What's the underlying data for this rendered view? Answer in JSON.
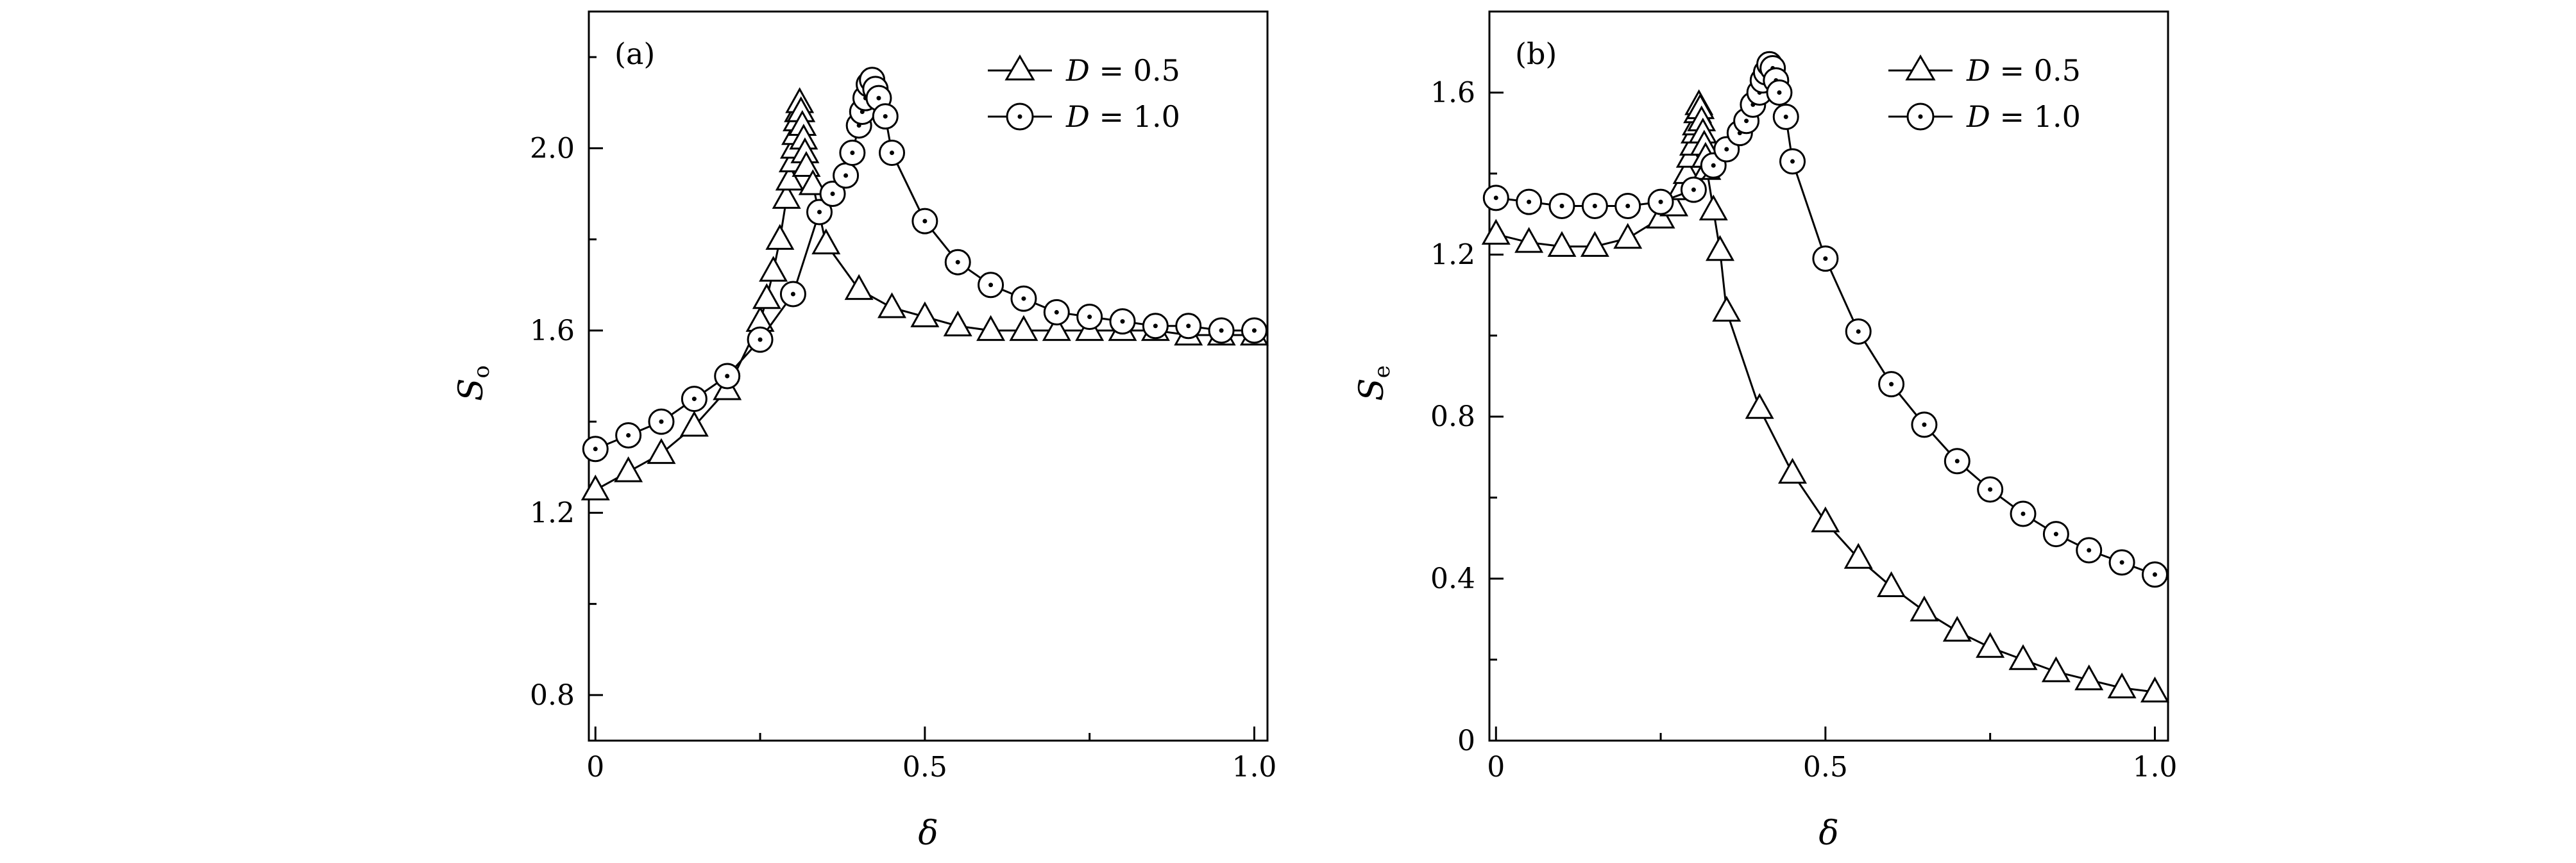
{
  "chart_data": [
    {
      "type": "line",
      "panel_label": "(a)",
      "xlabel": "δ",
      "ylabel_main": "S",
      "ylabel_sub": "o",
      "xlim": [
        -0.01,
        1.02
      ],
      "ylim": [
        0.7,
        2.3
      ],
      "xticks": [
        0,
        0.5,
        1.0
      ],
      "xtick_labels": [
        "0",
        "0.5",
        "1.0"
      ],
      "yticks": [
        0.8,
        1.2,
        1.6,
        2.0
      ],
      "ytick_labels": [
        "0.8",
        "1.2",
        "1.6",
        "2.0"
      ],
      "grid": false,
      "legend": "top-right",
      "series": [
        {
          "name": "D = 0.5",
          "legend_var": "D",
          "legend_value": "= 0.5",
          "marker": "triangle",
          "x": [
            0,
            0.05,
            0.1,
            0.15,
            0.2,
            0.25,
            0.26,
            0.27,
            0.28,
            0.29,
            0.295,
            0.3,
            0.302,
            0.304,
            0.306,
            0.308,
            0.31,
            0.312,
            0.314,
            0.316,
            0.318,
            0.32,
            0.33,
            0.35,
            0.4,
            0.45,
            0.5,
            0.55,
            0.6,
            0.65,
            0.7,
            0.75,
            0.8,
            0.85,
            0.9,
            0.95,
            1.0
          ],
          "y": [
            1.25,
            1.29,
            1.33,
            1.39,
            1.47,
            1.62,
            1.67,
            1.73,
            1.8,
            1.89,
            1.93,
            1.97,
            2.0,
            2.03,
            2.06,
            2.08,
            2.1,
            2.08,
            2.05,
            2.02,
            1.99,
            1.96,
            1.92,
            1.79,
            1.69,
            1.65,
            1.63,
            1.61,
            1.6,
            1.6,
            1.6,
            1.6,
            1.6,
            1.6,
            1.59,
            1.59,
            1.59
          ]
        },
        {
          "name": "D = 1.0",
          "legend_var": "D",
          "legend_value": "= 1.0",
          "marker": "circle-dot",
          "x": [
            0,
            0.05,
            0.1,
            0.15,
            0.2,
            0.25,
            0.3,
            0.34,
            0.36,
            0.38,
            0.39,
            0.4,
            0.405,
            0.41,
            0.415,
            0.42,
            0.425,
            0.43,
            0.44,
            0.45,
            0.5,
            0.55,
            0.6,
            0.65,
            0.7,
            0.75,
            0.8,
            0.85,
            0.9,
            0.95,
            1.0
          ],
          "y": [
            1.34,
            1.37,
            1.4,
            1.45,
            1.5,
            1.58,
            1.68,
            1.86,
            1.9,
            1.94,
            1.99,
            2.05,
            2.08,
            2.11,
            2.14,
            2.15,
            2.13,
            2.11,
            2.07,
            1.99,
            1.84,
            1.75,
            1.7,
            1.67,
            1.64,
            1.63,
            1.62,
            1.61,
            1.61,
            1.6,
            1.6
          ]
        }
      ]
    },
    {
      "type": "line",
      "panel_label": "(b)",
      "xlabel": "δ",
      "ylabel_main": "S",
      "ylabel_sub": "e",
      "xlim": [
        -0.01,
        1.02
      ],
      "ylim": [
        0,
        1.8
      ],
      "xticks": [
        0,
        0.5,
        1.0
      ],
      "xtick_labels": [
        "0",
        "0.5",
        "1.0"
      ],
      "yticks": [
        0,
        0.4,
        0.8,
        1.2,
        1.6
      ],
      "ytick_labels": [
        "0",
        "0.4",
        "0.8",
        "1.2",
        "1.6"
      ],
      "grid": false,
      "legend": "top-right",
      "series": [
        {
          "name": "D = 0.5",
          "legend_var": "D",
          "legend_value": "= 0.5",
          "marker": "triangle",
          "x": [
            0,
            0.05,
            0.1,
            0.15,
            0.2,
            0.25,
            0.27,
            0.28,
            0.29,
            0.295,
            0.3,
            0.302,
            0.304,
            0.306,
            0.308,
            0.31,
            0.312,
            0.314,
            0.316,
            0.318,
            0.32,
            0.33,
            0.34,
            0.35,
            0.4,
            0.45,
            0.5,
            0.55,
            0.6,
            0.65,
            0.7,
            0.75,
            0.8,
            0.85,
            0.9,
            0.95,
            1.0
          ],
          "y": [
            1.25,
            1.23,
            1.22,
            1.22,
            1.24,
            1.29,
            1.32,
            1.36,
            1.4,
            1.44,
            1.47,
            1.5,
            1.52,
            1.55,
            1.57,
            1.56,
            1.53,
            1.5,
            1.47,
            1.44,
            1.41,
            1.31,
            1.21,
            1.06,
            0.82,
            0.66,
            0.54,
            0.45,
            0.38,
            0.32,
            0.27,
            0.23,
            0.2,
            0.17,
            0.15,
            0.13,
            0.12
          ]
        },
        {
          "name": "D = 1.0",
          "legend_var": "D",
          "legend_value": "= 1.0",
          "marker": "circle-dot",
          "x": [
            0,
            0.05,
            0.1,
            0.15,
            0.2,
            0.25,
            0.3,
            0.33,
            0.35,
            0.37,
            0.38,
            0.39,
            0.4,
            0.405,
            0.41,
            0.415,
            0.42,
            0.425,
            0.43,
            0.44,
            0.45,
            0.5,
            0.55,
            0.6,
            0.65,
            0.7,
            0.75,
            0.8,
            0.85,
            0.9,
            0.95,
            1.0
          ],
          "y": [
            1.34,
            1.33,
            1.32,
            1.32,
            1.32,
            1.33,
            1.36,
            1.42,
            1.46,
            1.5,
            1.53,
            1.57,
            1.6,
            1.63,
            1.65,
            1.67,
            1.66,
            1.63,
            1.6,
            1.54,
            1.43,
            1.19,
            1.01,
            0.88,
            0.78,
            0.69,
            0.62,
            0.56,
            0.51,
            0.47,
            0.44,
            0.41
          ]
        }
      ]
    }
  ]
}
